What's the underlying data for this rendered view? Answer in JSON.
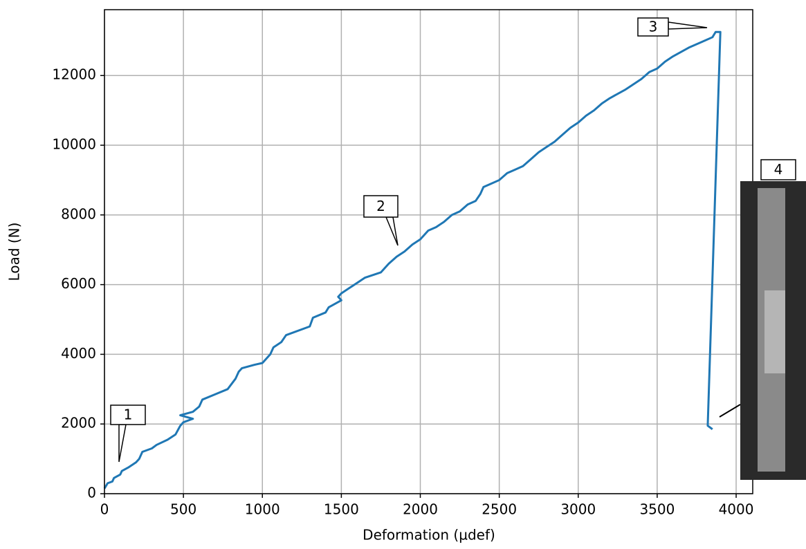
{
  "chart_data": {
    "type": "line",
    "xlabel": "Deformation (µdef)",
    "ylabel": "Load (N)",
    "annotations": [
      "1",
      "2",
      "3",
      "4"
    ],
    "x": [
      0,
      20,
      50,
      60,
      100,
      110,
      150,
      200,
      220,
      240,
      300,
      330,
      400,
      450,
      480,
      500,
      560,
      480,
      560,
      600,
      620,
      700,
      780,
      830,
      850,
      870,
      950,
      1000,
      1050,
      1070,
      1120,
      1150,
      1300,
      1320,
      1400,
      1420,
      1500,
      1480,
      1500,
      1550,
      1600,
      1650,
      1750,
      1800,
      1850,
      1900,
      1950,
      2000,
      2050,
      2100,
      2150,
      2200,
      2250,
      2300,
      2350,
      2380,
      2400,
      2450,
      2500,
      2550,
      2600,
      2650,
      2700,
      2750,
      2800,
      2850,
      2900,
      2950,
      3000,
      3050,
      3100,
      3150,
      3200,
      3300,
      3400,
      3450,
      3500,
      3550,
      3600,
      3700,
      3800,
      3850,
      3870,
      3900,
      3820,
      3850
    ],
    "series": [
      {
        "name": "Load",
        "color": "#1f77b4",
        "values": [
          150,
          300,
          350,
          450,
          550,
          650,
          750,
          900,
          1000,
          1200,
          1300,
          1400,
          1550,
          1700,
          1950,
          2050,
          2150,
          2250,
          2350,
          2500,
          2700,
          2850,
          3000,
          3300,
          3500,
          3600,
          3700,
          3750,
          4000,
          4200,
          4350,
          4550,
          4800,
          5050,
          5200,
          5350,
          5550,
          5650,
          5750,
          5900,
          6050,
          6200,
          6350,
          6600,
          6800,
          6950,
          7150,
          7300,
          7550,
          7650,
          7800,
          8000,
          8100,
          8300,
          8400,
          8600,
          8800,
          8900,
          9000,
          9200,
          9300,
          9400,
          9600,
          9800,
          9950,
          10100,
          10300,
          10500,
          10650,
          10850,
          11000,
          11200,
          11350,
          11600,
          11900,
          12100,
          12200,
          12400,
          12550,
          12800,
          13000,
          13100,
          13250,
          13250,
          1950,
          1850
        ]
      }
    ],
    "xlim": [
      0,
      4105
    ],
    "ylim": [
      0,
      13890
    ],
    "xticks": [
      0,
      500,
      1000,
      1500,
      2000,
      2500,
      3000,
      3500,
      4000
    ],
    "yticks": [
      0,
      2000,
      4000,
      6000,
      8000,
      10000,
      12000
    ],
    "grid": true
  }
}
